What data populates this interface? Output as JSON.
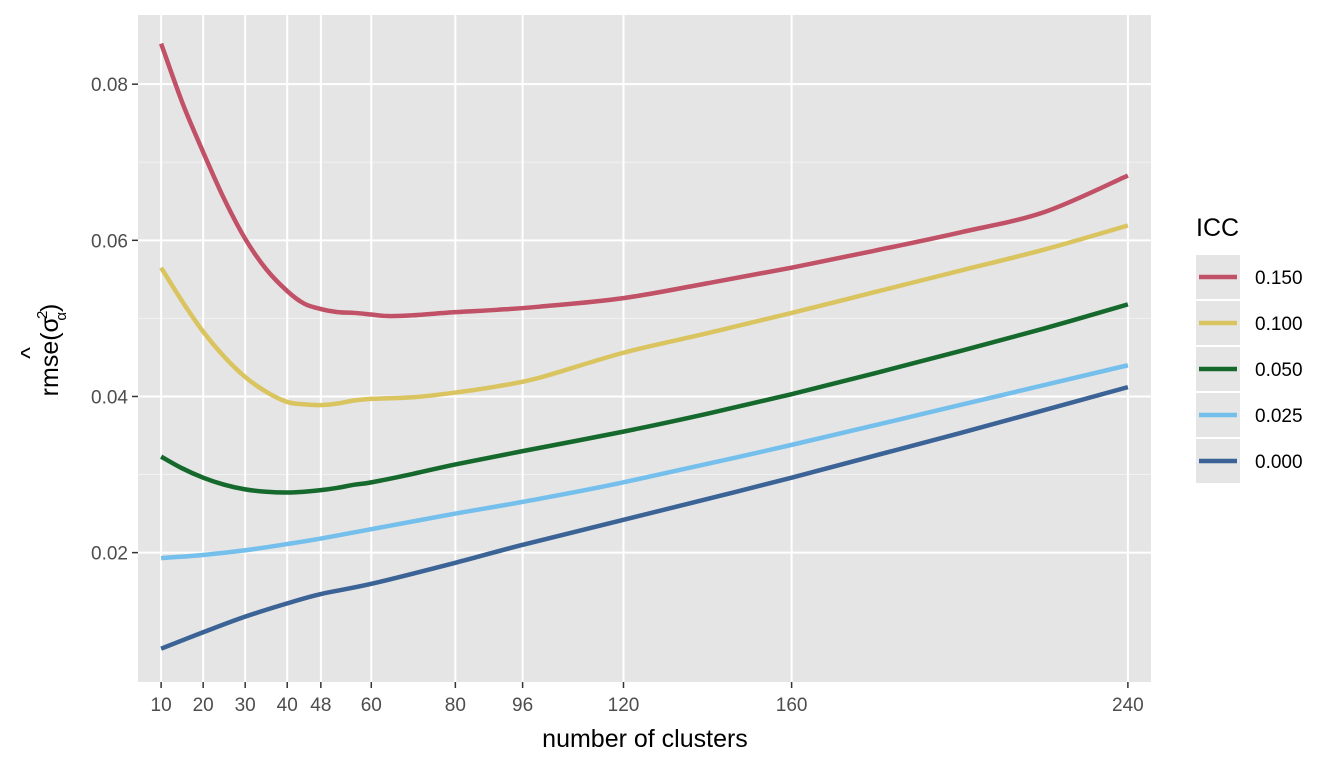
{
  "chart_data": {
    "type": "line",
    "xlabel": "number of clusters",
    "ylabel_prefix": "rmse(",
    "ylabel_hat": "^",
    "ylabel_sigma": "σ",
    "ylabel_sup": "2",
    "ylabel_sub": "α",
    "ylabel_suffix": ")",
    "xlim": [
      4.5,
      245.5
    ],
    "ylim": [
      0.00343,
      0.08886
    ],
    "x_ticks": [
      10,
      20,
      30,
      40,
      48,
      60,
      80,
      96,
      120,
      160,
      240
    ],
    "x_tick_labels": [
      "10",
      "20",
      "30",
      "40",
      "48",
      "60",
      "80",
      "96",
      "120",
      "160",
      "240"
    ],
    "y_ticks": [
      0.02,
      0.04,
      0.06,
      0.08
    ],
    "y_tick_labels": [
      "0.02",
      "0.04",
      "0.06",
      "0.08"
    ],
    "grid": true,
    "panel_background": "#e5e5e5",
    "legend": {
      "title": "ICC",
      "position": "right"
    },
    "series": [
      {
        "name": "0.150",
        "color": "#c05167",
        "x": [
          10,
          15,
          20,
          25,
          30,
          35,
          40,
          44,
          48,
          52,
          56,
          60,
          64,
          70,
          80,
          90,
          100,
          120,
          140,
          160,
          180,
          200,
          220,
          240
        ],
        "y": [
          0.0852,
          0.0777,
          0.0713,
          0.0653,
          0.0602,
          0.0563,
          0.0535,
          0.0519,
          0.0512,
          0.0508,
          0.0507,
          0.0505,
          0.0503,
          0.0504,
          0.0508,
          0.0511,
          0.0515,
          0.0526,
          0.0545,
          0.0565,
          0.0587,
          0.061,
          0.0636,
          0.0683
        ]
      },
      {
        "name": "0.100",
        "color": "#d9c460",
        "x": [
          10,
          15,
          20,
          25,
          30,
          35,
          40,
          44,
          48,
          52,
          56,
          60,
          70,
          80,
          90,
          100,
          120,
          140,
          160,
          180,
          200,
          220,
          240
        ],
        "y": [
          0.0565,
          0.0522,
          0.0483,
          0.0451,
          0.0425,
          0.0406,
          0.0393,
          0.039,
          0.0389,
          0.0391,
          0.0395,
          0.0397,
          0.0399,
          0.0405,
          0.0413,
          0.0424,
          0.0456,
          0.0481,
          0.0507,
          0.0534,
          0.0561,
          0.0588,
          0.0619
        ]
      },
      {
        "name": "0.050",
        "color": "#16692d",
        "x": [
          10,
          15,
          20,
          25,
          30,
          35,
          40,
          44,
          48,
          52,
          56,
          60,
          70,
          80,
          96,
          120,
          140,
          160,
          180,
          200,
          220,
          240
        ],
        "y": [
          0.0323,
          0.0308,
          0.0296,
          0.0287,
          0.0281,
          0.0278,
          0.0277,
          0.0278,
          0.028,
          0.0283,
          0.0287,
          0.029,
          0.0301,
          0.0313,
          0.033,
          0.0355,
          0.0378,
          0.0403,
          0.043,
          0.0458,
          0.0487,
          0.0518
        ]
      },
      {
        "name": "0.025",
        "color": "#75bfec",
        "x": [
          10,
          20,
          30,
          40,
          48,
          60,
          80,
          96,
          120,
          160,
          200,
          240
        ],
        "y": [
          0.0193,
          0.0197,
          0.0203,
          0.0211,
          0.0218,
          0.023,
          0.025,
          0.0265,
          0.029,
          0.0338,
          0.0389,
          0.044
        ]
      },
      {
        "name": "0.000",
        "color": "#3b6396",
        "x": [
          10,
          20,
          30,
          40,
          48,
          60,
          80,
          96,
          120,
          160,
          200,
          240
        ],
        "y": [
          0.0077,
          0.0098,
          0.0118,
          0.0135,
          0.0147,
          0.016,
          0.0187,
          0.021,
          0.0242,
          0.0296,
          0.0353,
          0.0412
        ]
      }
    ]
  }
}
